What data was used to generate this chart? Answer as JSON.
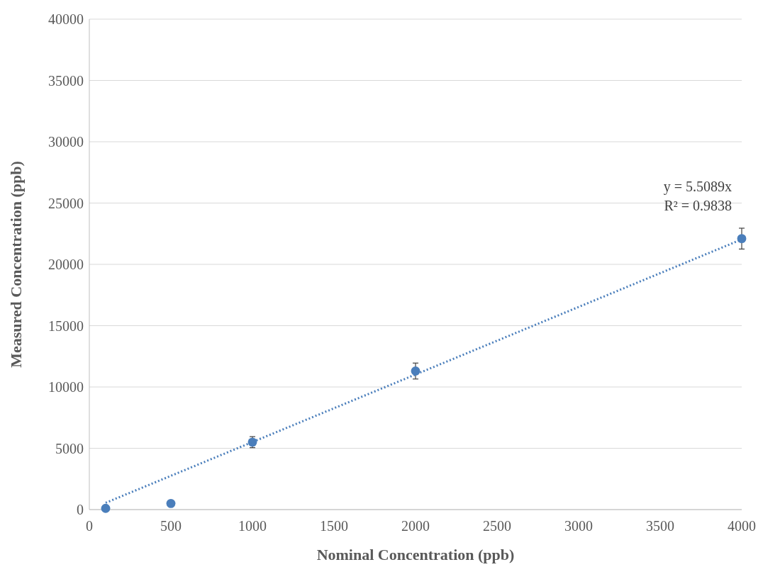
{
  "chart_data": {
    "type": "scatter",
    "xlabel": "Nominal Concentration (ppb)",
    "ylabel": "Measured Concentration (ppb)",
    "xlim": [
      0,
      4000
    ],
    "xticks": [
      0,
      500,
      1000,
      1500,
      2000,
      2500,
      3000,
      3500,
      4000
    ],
    "ylim": [
      0,
      40000
    ],
    "yticks": [
      0,
      5000,
      10000,
      15000,
      20000,
      25000,
      30000,
      35000,
      40000
    ],
    "grid": "y",
    "marker": "circle",
    "series": [
      {
        "color": "#4a7ebb",
        "x": [
          100,
          500,
          1000,
          2000,
          4000
        ],
        "values": [
          100,
          500,
          5500,
          11300,
          22100
        ],
        "errors": [
          null,
          null,
          450,
          650,
          850
        ]
      },
      {
        "type": "line",
        "color": "#4a7ebb",
        "line_style": "dotted",
        "marker": "none",
        "x": [
          100,
          4000
        ],
        "values": [
          551,
          22036
        ]
      }
    ],
    "annotations": [
      "y = 5.5089x",
      "R² = 0.9838"
    ]
  }
}
